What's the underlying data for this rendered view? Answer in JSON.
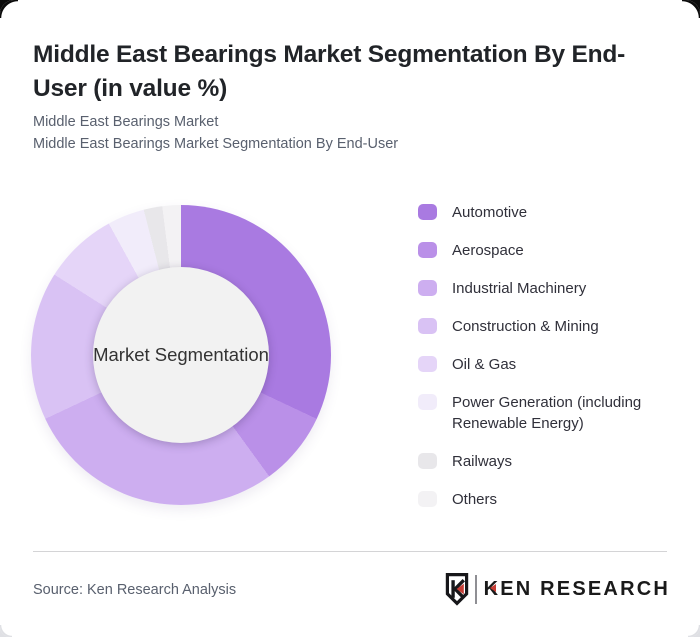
{
  "header": {
    "title": "Middle East Bearings Market Segmentation By End-User (in value %)",
    "subtitle_line1": "Middle East Bearings Market",
    "subtitle_line2": "Middle East Bearings Market Segmentation By End-User"
  },
  "chart_data": {
    "type": "pie",
    "style": "donut",
    "title": "Middle East Bearings Market Segmentation By End-User (in value %)",
    "center_label": "Market Segmentation",
    "unit": "value %",
    "start_angle_deg": 0,
    "direction": "clockwise",
    "legend_position": "right",
    "categories": [
      "Automotive",
      "Aerospace",
      "Industrial Machinery",
      "Construction & Mining",
      "Oil & Gas",
      "Power Generation (including Renewable Energy)",
      "Railways",
      "Others"
    ],
    "values": [
      32,
      8,
      28,
      16,
      8,
      4,
      2,
      2
    ],
    "colors": [
      "#a97ae1",
      "#ba90e8",
      "#cdaef0",
      "#d9c2f4",
      "#e5d5f8",
      "#f1ecfa",
      "#e8e7ea",
      "#f3f2f4"
    ],
    "hole_color": "#f2f2f2"
  },
  "footer": {
    "source": "Source: Ken Research Analysis",
    "logo_k": "K",
    "logo_rest": "EN RESEARCH",
    "logo_red": "#c63d35",
    "logo_dark": "#1a1a1a"
  }
}
